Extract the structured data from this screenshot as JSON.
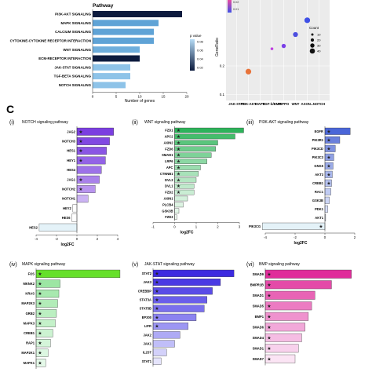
{
  "figure": {
    "panel_letter": "C"
  },
  "chart_data": [
    {
      "id": "pathway_bar",
      "type": "bar",
      "orientation": "horizontal",
      "title": "Pathway",
      "xlabel": "Number of genes",
      "xticks": [
        0,
        5,
        10,
        15,
        20
      ],
      "xlim": [
        0,
        20
      ],
      "categories": [
        "PI3K-AKT SIGNALING",
        "MAPK SIGNALING",
        "CALCIUM SIGNALING",
        "CYTOKINE-CYTOKINE RECEPTOR INTERACTION",
        "WNT SIGNALING",
        "ECM-RECEPTOR INTERACTION",
        "JAK-STAT SIGNALING",
        "TGF-BETA SIGNALING",
        "NOTCH SIGNALING"
      ],
      "values": [
        19,
        14,
        13,
        13,
        10,
        10,
        8,
        8,
        7
      ],
      "bar_colors": [
        "#0d1b3e",
        "#5fa3d6",
        "#5fa3d6",
        "#5fa3d6",
        "#6faedc",
        "#0d1b3e",
        "#8ec3e8",
        "#8ec3e8",
        "#8ec3e8"
      ],
      "legend": {
        "title": "p value",
        "ticks": [
          "0.02",
          "0.04",
          "0.06",
          "0.08"
        ],
        "colors": [
          "#0d1b3e",
          "#b6dcf6"
        ],
        "placement": "right"
      }
    },
    {
      "id": "dot_plot",
      "type": "scatter",
      "ylabel": "GeneRatio",
      "yticks": [
        0.1,
        0.2
      ],
      "ylim": [
        0.09,
        0.42
      ],
      "categories": [
        "JAK-STAT",
        "PI3K-AKT",
        "MAPK",
        "TGF-b/BMP",
        "HIPPO",
        "WNT",
        "AXON...",
        "NOTCH"
      ],
      "points": [
        {
          "cat": "PI3K-AKT",
          "y": 0.18,
          "count": 30,
          "color": "#e8733a"
        },
        {
          "cat": "TGF-b/BMP",
          "y": 0.26,
          "count": 10,
          "color": "#c040e0"
        },
        {
          "cat": "HIPPO",
          "y": 0.27,
          "count": 20,
          "color": "#7b3fe8"
        },
        {
          "cat": "WNT",
          "y": 0.31,
          "count": 25,
          "color": "#4d4fe0"
        },
        {
          "cat": "AXON...",
          "y": 0.36,
          "count": 30,
          "color": "#3f50e6"
        }
      ],
      "color_legend": {
        "ticks": [
          "0.02",
          "0.01"
        ],
        "placement": "top-left"
      },
      "size_legend": {
        "title": "Count",
        "values": [
          10,
          20,
          30,
          40
        ],
        "placement": "right"
      }
    },
    {
      "id": "notch",
      "roman": "(i)",
      "type": "bar",
      "orientation": "horizontal",
      "title": "NOTCH signaling pathway",
      "xlabel": "log2FC",
      "xlim": [
        -4,
        4
      ],
      "xticks": [
        -4,
        -2,
        0,
        2,
        4
      ],
      "genes": [
        "JAG2",
        "NOTCH3",
        "HES1",
        "HEY1",
        "HES4",
        "JAG1",
        "NOTCH2",
        "NOTCH1",
        "HEY2",
        "HES6",
        "HES2"
      ],
      "values": [
        3.6,
        3.2,
        2.9,
        2.8,
        2.4,
        2.2,
        1.8,
        1.1,
        -0.4,
        -0.5,
        -3.7
      ],
      "sig": [
        true,
        true,
        true,
        true,
        false,
        true,
        true,
        false,
        false,
        false,
        false
      ],
      "colors": [
        "#7b3ee0",
        "#8148e2",
        "#8a55e4",
        "#9363e6",
        "#9d72e8",
        "#a981ea",
        "#b894ee",
        "#cbb3f3",
        "#ffffff",
        "#ffffff",
        "#e4f2f8"
      ]
    },
    {
      "id": "wnt",
      "roman": "(ii)",
      "type": "bar",
      "orientation": "horizontal",
      "title": "WNT signaling pathway",
      "xlabel": "log2FC",
      "xlim": [
        -1,
        3
      ],
      "xticks": [
        -1,
        0,
        1,
        2,
        3
      ],
      "genes": [
        "FZD1",
        "APC2",
        "AXIN2",
        "FZD6",
        "SMAD1",
        "LRP6",
        "APC",
        "CTNNB1",
        "DVL3",
        "DVL1",
        "FZD2",
        "AXIN1",
        "PLCB4",
        "GSK3B",
        "FZD3"
      ],
      "values": [
        3.2,
        2.8,
        2.0,
        1.9,
        1.7,
        1.5,
        1.2,
        1.1,
        1.0,
        0.9,
        0.9,
        0.6,
        0.4,
        0.2,
        0.1
      ],
      "sig": [
        true,
        true,
        true,
        true,
        true,
        true,
        true,
        true,
        true,
        true,
        true,
        false,
        false,
        false,
        false
      ],
      "colors": [
        "#2db35a",
        "#44bd6b",
        "#5ac57c",
        "#6dcc8b",
        "#7dd298",
        "#8cd8a4",
        "#9bddaf",
        "#a8e2b9",
        "#b4e6c2",
        "#bfe9cb",
        "#c9edd3",
        "#d3f0db",
        "#dcf3e2",
        "#e4f6e8",
        "#ecf8ee"
      ]
    },
    {
      "id": "pi3k",
      "roman": "(iii)",
      "type": "bar",
      "orientation": "horizontal",
      "title": "PI3K-AKT signaling pathway",
      "xlabel": "log2FC",
      "xlim": [
        -4,
        2
      ],
      "xticks": [
        -4,
        -2,
        0,
        2
      ],
      "genes": [
        "EGFR",
        "PIK3R1",
        "PIK3CD",
        "PIK3C3",
        "GNG5",
        "AKT3",
        "CREB1",
        "RAC1",
        "GSK3B",
        "PDK1",
        "AKT1",
        "PIK3CG"
      ],
      "values": [
        1.7,
        1.0,
        0.7,
        0.6,
        0.55,
        0.5,
        0.45,
        0.4,
        0.3,
        0.2,
        0.05,
        -4.2
      ],
      "sig": [
        true,
        true,
        true,
        true,
        true,
        true,
        true,
        false,
        false,
        false,
        false,
        true
      ],
      "colors": [
        "#4a66d8",
        "#6b80dc",
        "#7f92e0",
        "#8fa0e4",
        "#9cace8",
        "#a9b7ec",
        "#b5c1ef",
        "#c0cbf2",
        "#ccd5f5",
        "#d7def8",
        "#e4e9fb",
        "#e4f2f8"
      ]
    },
    {
      "id": "mapk",
      "roman": "(iv)",
      "type": "bar",
      "orientation": "horizontal",
      "title": "MAPK signaling pathway",
      "xlim": [
        0,
        3.6
      ],
      "genes": [
        "FOS",
        "MKNK2",
        "KRAS",
        "MAP2K3",
        "GRB2",
        "MAPK3",
        "CREB1",
        "RAP1",
        "MAP2K1",
        "MAPK1"
      ],
      "values": [
        3.5,
        1.0,
        0.95,
        0.9,
        0.85,
        0.8,
        0.7,
        0.6,
        0.5,
        0.4
      ],
      "sig": [
        true,
        true,
        true,
        true,
        true,
        true,
        true,
        true,
        true,
        true
      ],
      "colors": [
        "#66e02a",
        "#9ce6a3",
        "#a8e9af",
        "#b2ecb8",
        "#bbefc1",
        "#c4f1c9",
        "#ccf3d1",
        "#d4f5d9",
        "#dcf7e1",
        "#e4f9e8"
      ]
    },
    {
      "id": "jak",
      "roman": "(v)",
      "type": "bar",
      "orientation": "horizontal",
      "title": "JAK-STAT signaling pathway",
      "xlim": [
        0,
        3.2
      ],
      "genes": [
        "STAT2",
        "JAK3",
        "CREBBP",
        "STAT3A",
        "STAT5B",
        "EP300",
        "LIFR",
        "JAK2",
        "JAK1",
        "IL2ST",
        "STAT1"
      ],
      "values": [
        3.0,
        2.5,
        2.2,
        2.0,
        1.9,
        1.6,
        1.3,
        1.0,
        0.8,
        0.5,
        0.3
      ],
      "sig": [
        true,
        true,
        true,
        true,
        true,
        true,
        true,
        false,
        false,
        false,
        false
      ],
      "colors": [
        "#3d2ae0",
        "#4a3ae4",
        "#5a4ce7",
        "#6a5eea",
        "#7a70ed",
        "#8b83f0",
        "#9c96f3",
        "#aeaaf5",
        "#c0bef8",
        "#d3d1fa",
        "#e5e4fc"
      ]
    },
    {
      "id": "bmp",
      "roman": "(vi)",
      "type": "bar",
      "orientation": "horizontal",
      "title": "BMP signaling pathway",
      "xlim": [
        0,
        2.7
      ],
      "genes": [
        "SMAD9",
        "BMPR1B",
        "SMAD1",
        "SMAD5",
        "BMP1",
        "SMAD6",
        "SMAD4",
        "SMAD1",
        "SMAD7"
      ],
      "values": [
        2.6,
        2.0,
        1.5,
        1.4,
        1.3,
        1.2,
        1.1,
        1.0,
        0.9
      ],
      "sig": [
        true,
        true,
        true,
        true,
        true,
        true,
        true,
        true,
        true
      ],
      "colors": [
        "#e02c9a",
        "#e44aa8",
        "#e863b5",
        "#ec7bc2",
        "#ef92ce",
        "#f2a8d9",
        "#f5bde3",
        "#f8d1ec",
        "#fbe4f4"
      ]
    }
  ]
}
